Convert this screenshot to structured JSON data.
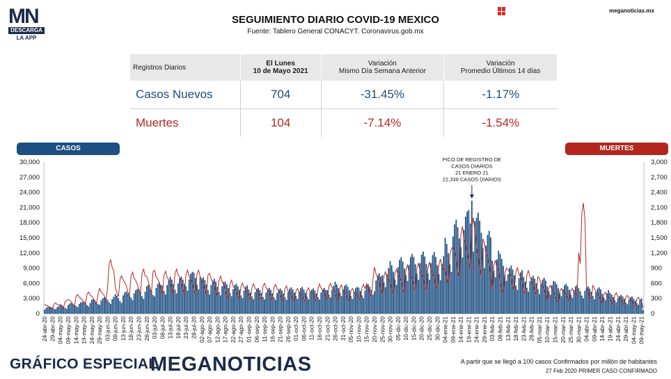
{
  "header": {
    "title": "SEGUIMIENTO DIARIO COVID-19 MEXICO",
    "subtitle": "Fuente: Tablero General CONACYT. Coronavirus.gob.mx",
    "site": "meganoticias.mx",
    "logo": {
      "mark": "MN",
      "badge": "DESCARGA",
      "tagline": "LA APP"
    }
  },
  "stats_table": {
    "col0": "Registros Diarios",
    "col1_line1": "El Lunes",
    "col1_line2": "10 de Mayo 2021",
    "col2_line1": "Variación",
    "col2_line2": "Mismo Día Semana Anterior",
    "col3_line1": "Variación",
    "col3_line2": "Promedio Últimos 14 días",
    "rows": [
      {
        "label": "Casos Nuevos",
        "value": "704",
        "var_week": "-31.45%",
        "var_14d": "-1.17%",
        "color": "#1b4b7a"
      },
      {
        "label": "Muertes",
        "value": "104",
        "var_week": "-7.14%",
        "var_14d": "-1.54%",
        "color": "#b3261e"
      }
    ]
  },
  "legend": {
    "cases": "CASOS",
    "deaths": "MUERTES"
  },
  "footer": {
    "special": "GRÁFICO ESPECIAL",
    "brand": "MEGANOTICIAS",
    "note1": "A partir que se llegó a 100 casos Confirmados por millón de habitantes",
    "note2": "27 Feb 2020 PRIMER CASO CONFIRMADO"
  },
  "chart_data": {
    "type": "bar",
    "title": "SEGUIMIENTO DIARIO COVID-19 MEXICO",
    "ylabel_left": "CASOS",
    "ylabel_right": "MUERTES",
    "ylim_left": [
      0,
      30000
    ],
    "ylim_right": [
      0,
      3000
    ],
    "yticks_left": [
      "0",
      "3,000",
      "6,000",
      "9,000",
      "12,000",
      "15,000",
      "18,000",
      "21,000",
      "24,000",
      "27,000",
      "30,000"
    ],
    "yticks_right": [
      "0",
      "300",
      "600",
      "900",
      "1,200",
      "1,500",
      "1,800",
      "2,100",
      "2,400",
      "2,700",
      "3,000"
    ],
    "xtick_labels": [
      "24-abr-20",
      "29-abr-20",
      "04-may-20",
      "09-may-20",
      "14-may-20",
      "19-may-20",
      "24-may-20",
      "29-may-20",
      "03-jun-20",
      "08-jun-20",
      "13-jun-20",
      "18-jun-20",
      "23-jun-20",
      "28-jun-20",
      "03-jul-20",
      "08-jul-20",
      "13-jul-20",
      "18-jul-20",
      "23-jul-20",
      "28-jul-20",
      "02-ago-20",
      "07-ago-20",
      "12-ago-20",
      "17-ago-20",
      "22-ago-20",
      "27-ago-20",
      "01-sep-20",
      "06-sep-20",
      "11-sep-20",
      "16-sep-20",
      "21-sep-20",
      "26-sep-20",
      "01-oct-20",
      "06-oct-20",
      "11-oct-20",
      "16-oct-20",
      "21-oct-20",
      "26-oct-20",
      "31-oct-20",
      "05-nov-20",
      "10-nov-20",
      "15-nov-20",
      "20-nov-20",
      "25-nov-20",
      "30-nov-20",
      "05-dic-20",
      "10-dic-20",
      "15-dic-20",
      "20-dic-20",
      "25-dic-20",
      "30-dic-20",
      "04-ene-21",
      "09-ene-21",
      "14-ene-21",
      "19-ene-21",
      "24-ene-21",
      "29-ene-21",
      "03-feb-21",
      "08-feb-21",
      "13-feb-21",
      "18-feb-21",
      "23-feb-21",
      "28-feb-21",
      "05-mar-21",
      "10-mar-21",
      "15-mar-21",
      "20-mar-21",
      "25-mar-21",
      "30-mar-21",
      "04-abr-21",
      "09-abr-21",
      "14-abr-21",
      "19-abr-21",
      "24-abr-21",
      "29-abr-21",
      "04-may-21",
      "09-may-21"
    ],
    "start_date": "2020-04-24",
    "days": 382,
    "cases_weekly_peaks": [
      1400,
      1550,
      1800,
      2100,
      2350,
      2600,
      2900,
      3200,
      3500,
      3850,
      4400,
      4900,
      5300,
      5700,
      6200,
      6900,
      7300,
      7300,
      8300,
      8800,
      7200,
      6900,
      6600,
      6300,
      5900,
      5600,
      5200,
      5100,
      5100,
      5000,
      5000,
      5200,
      5300,
      5200,
      5000,
      5100,
      5800,
      6300,
      5800,
      5300,
      5600,
      5800,
      8000,
      9500,
      10400,
      11200,
      11800,
      12200,
      12300,
      12200,
      12000,
      15000,
      18600,
      20200,
      22300,
      20000,
      16400,
      13100,
      11800,
      9500,
      8600,
      7900,
      7500,
      7100,
      6800,
      6300,
      5900,
      5700,
      5500,
      5400,
      5200,
      4900,
      4100,
      3700,
      3400,
      3200
    ],
    "deaths_weekly_peaks": [
      190,
      210,
      260,
      330,
      380,
      430,
      430,
      500,
      1070,
      750,
      780,
      820,
      880,
      920,
      860,
      840,
      880,
      900,
      860,
      860,
      850,
      800,
      740,
      660,
      640,
      600,
      590,
      600,
      600,
      580,
      550,
      520,
      500,
      510,
      540,
      590,
      600,
      570,
      540,
      500,
      580,
      740,
      920,
      830,
      880,
      900,
      960,
      1000,
      1000,
      1020,
      1080,
      1280,
      1560,
      1730,
      1900,
      1650,
      1390,
      1060,
      900,
      1020,
      910,
      850,
      810,
      700,
      560,
      500,
      530,
      500,
      2190,
      620,
      500,
      420,
      410,
      380,
      360,
      320
    ],
    "annotation": {
      "lines": [
        "PICO DE REGISTRO DE",
        "CASOS DIARIOS",
        "21 ENERO 21",
        "22,339 CASOS DIARIOS"
      ],
      "date": "2021-01-21",
      "value": 22339
    },
    "last_point": {
      "date": "2021-05-10",
      "cases": 704,
      "deaths": 104
    },
    "colors": {
      "cases": "#1c4f82",
      "deaths": "#b3261e"
    },
    "grid": false
  }
}
